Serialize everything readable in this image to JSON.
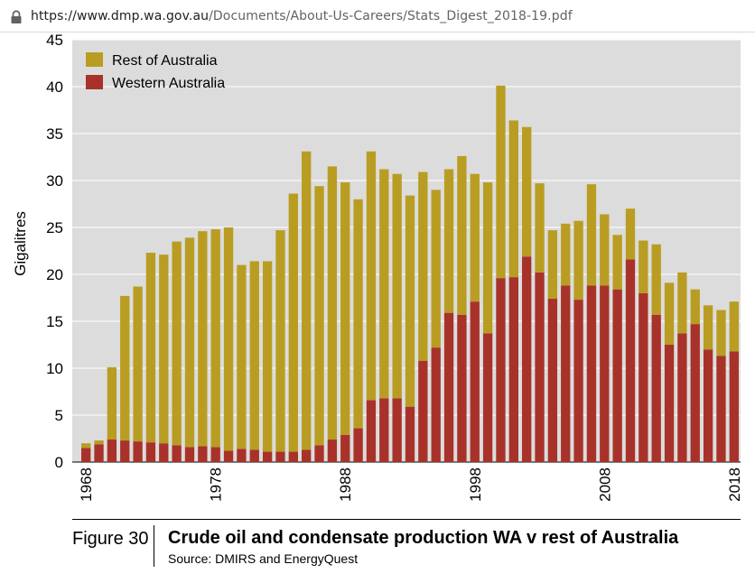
{
  "browser": {
    "url_host": "https://www.dmp.wa.gov.au",
    "url_path": "/Documents/About-Us-Careers/Stats_Digest_2018-19.pdf"
  },
  "figure": {
    "label": "Figure 30",
    "title": "Crude oil and condensate production WA v rest of Australia",
    "source": "Source: DMIRS and EnergyQuest"
  },
  "colors": {
    "background": "#dcdcdc",
    "gridline": "#ffffff",
    "rest_of_australia": "#b99d22",
    "western_australia": "#a8322a"
  },
  "chart_data": {
    "type": "bar",
    "stacked": true,
    "xlabel": "",
    "ylabel": "Gigalitres",
    "ylim": [
      0,
      45
    ],
    "yticks": [
      0,
      5,
      10,
      15,
      20,
      25,
      30,
      35,
      40,
      45
    ],
    "xticks": [
      "1968",
      "1978",
      "1988",
      "1998",
      "2008",
      "2018"
    ],
    "grid": true,
    "legend_position": "top-left",
    "categories": [
      "1968",
      "1969",
      "1970",
      "1971",
      "1972",
      "1973",
      "1974",
      "1975",
      "1976",
      "1977",
      "1978",
      "1979",
      "1980",
      "1981",
      "1982",
      "1983",
      "1984",
      "1985",
      "1986",
      "1987",
      "1988",
      "1989",
      "1990",
      "1991",
      "1992",
      "1993",
      "1994",
      "1995",
      "1996",
      "1997",
      "1998",
      "1999",
      "2000",
      "2001",
      "2002",
      "2003",
      "2004",
      "2005",
      "2006",
      "2007",
      "2008",
      "2009",
      "2010",
      "2011",
      "2012",
      "2013",
      "2014",
      "2015",
      "2016",
      "2017",
      "2018"
    ],
    "series": [
      {
        "name": "Western Australia",
        "values": [
          1.5,
          1.9,
          2.4,
          2.3,
          2.2,
          2.1,
          2.0,
          1.8,
          1.6,
          1.7,
          1.6,
          1.2,
          1.4,
          1.3,
          1.1,
          1.1,
          1.1,
          1.3,
          1.8,
          2.4,
          2.9,
          3.6,
          6.6,
          6.8,
          6.8,
          5.9,
          10.8,
          12.2,
          15.9,
          15.7,
          17.1,
          13.7,
          19.6,
          19.7,
          21.9,
          20.2,
          17.4,
          18.8,
          17.3,
          18.8,
          18.8,
          18.4,
          21.6,
          18.0,
          15.7,
          12.5,
          13.7,
          14.7,
          12.0,
          11.3,
          11.8
        ]
      },
      {
        "name": "Rest of Australia",
        "values": [
          0.5,
          0.4,
          7.7,
          15.4,
          16.5,
          20.2,
          20.1,
          21.7,
          22.3,
          22.9,
          23.2,
          23.8,
          19.6,
          20.1,
          20.3,
          23.6,
          27.5,
          31.8,
          27.6,
          29.1,
          26.9,
          24.4,
          26.5,
          24.4,
          23.9,
          22.5,
          20.1,
          16.8,
          15.3,
          16.9,
          13.6,
          16.1,
          20.5,
          16.7,
          13.8,
          9.5,
          7.3,
          6.6,
          8.4,
          10.8,
          7.6,
          5.8,
          5.4,
          5.6,
          7.5,
          6.6,
          6.5,
          3.7,
          4.7,
          4.9,
          5.3
        ]
      }
    ]
  }
}
